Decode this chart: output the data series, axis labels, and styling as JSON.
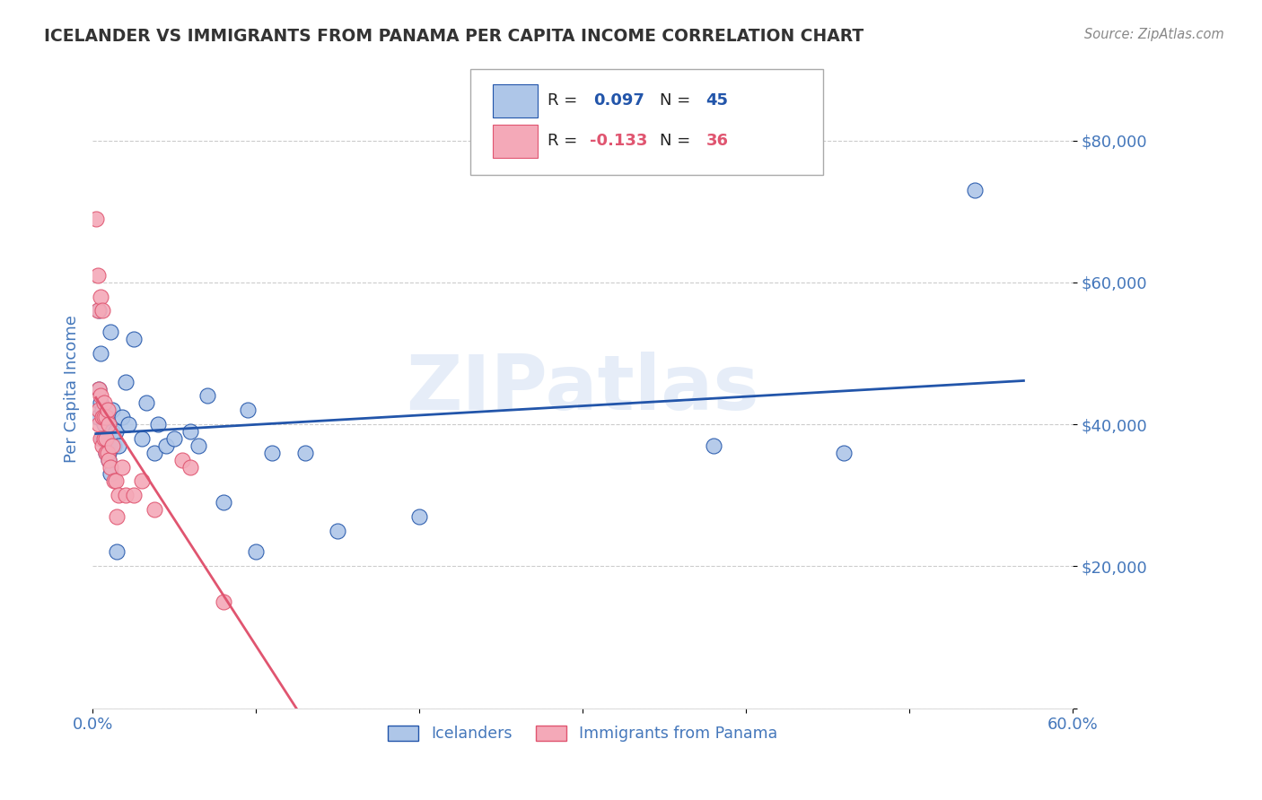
{
  "title": "ICELANDER VS IMMIGRANTS FROM PANAMA PER CAPITA INCOME CORRELATION CHART",
  "source": "Source: ZipAtlas.com",
  "ylabel": "Per Capita Income",
  "watermark": "ZIPatlas",
  "xlim": [
    0.0,
    0.6
  ],
  "ylim": [
    0,
    90000
  ],
  "yticks": [
    0,
    20000,
    40000,
    60000,
    80000
  ],
  "ytick_labels": [
    "",
    "$20,000",
    "$40,000",
    "$60,000",
    "$80,000"
  ],
  "xticks": [
    0.0,
    0.1,
    0.2,
    0.3,
    0.4,
    0.5,
    0.6
  ],
  "xtick_labels": [
    "0.0%",
    "",
    "",
    "",
    "",
    "",
    "60.0%"
  ],
  "r_icelander": 0.097,
  "n_icelander": 45,
  "r_panama": -0.133,
  "n_panama": 36,
  "icelander_color": "#aec6e8",
  "panama_color": "#f4a9b8",
  "icelander_line_color": "#2255aa",
  "panama_line_color": "#e05570",
  "icelander_x": [
    0.003,
    0.004,
    0.004,
    0.005,
    0.005,
    0.006,
    0.006,
    0.007,
    0.008,
    0.008,
    0.009,
    0.009,
    0.01,
    0.01,
    0.011,
    0.011,
    0.012,
    0.012,
    0.013,
    0.014,
    0.015,
    0.016,
    0.018,
    0.02,
    0.022,
    0.025,
    0.03,
    0.033,
    0.038,
    0.04,
    0.045,
    0.05,
    0.06,
    0.065,
    0.07,
    0.08,
    0.095,
    0.1,
    0.11,
    0.13,
    0.15,
    0.2,
    0.38,
    0.46,
    0.54
  ],
  "icelander_y": [
    41000,
    56000,
    45000,
    50000,
    43000,
    38000,
    42000,
    40000,
    41000,
    36000,
    38000,
    41000,
    35000,
    36000,
    33000,
    53000,
    39000,
    42000,
    37000,
    39000,
    22000,
    37000,
    41000,
    46000,
    40000,
    52000,
    38000,
    43000,
    36000,
    40000,
    37000,
    38000,
    39000,
    37000,
    44000,
    29000,
    42000,
    22000,
    36000,
    36000,
    25000,
    27000,
    37000,
    36000,
    73000
  ],
  "panama_x": [
    0.002,
    0.003,
    0.003,
    0.004,
    0.004,
    0.004,
    0.005,
    0.005,
    0.005,
    0.006,
    0.006,
    0.006,
    0.007,
    0.007,
    0.007,
    0.008,
    0.008,
    0.008,
    0.009,
    0.009,
    0.01,
    0.01,
    0.011,
    0.012,
    0.013,
    0.014,
    0.015,
    0.016,
    0.018,
    0.02,
    0.025,
    0.03,
    0.038,
    0.055,
    0.06,
    0.08
  ],
  "panama_y": [
    69000,
    61000,
    56000,
    42000,
    40000,
    45000,
    58000,
    44000,
    38000,
    41000,
    37000,
    56000,
    43000,
    38000,
    41000,
    38000,
    36000,
    41000,
    42000,
    36000,
    40000,
    35000,
    34000,
    37000,
    32000,
    32000,
    27000,
    30000,
    34000,
    30000,
    30000,
    32000,
    28000,
    35000,
    34000,
    15000
  ],
  "background_color": "#ffffff",
  "grid_color": "#cccccc",
  "title_color": "#333333",
  "axis_label_color": "#4477bb",
  "tick_color": "#4477bb"
}
